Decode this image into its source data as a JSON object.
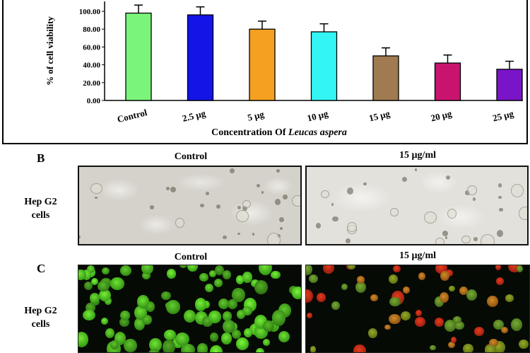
{
  "chart_data": {
    "type": "bar",
    "title": "",
    "xlabel_prefix": "Concentration Of ",
    "xlabel_species": "Leucas aspera",
    "ylabel": "% of cell viability",
    "ylim": [
      0,
      100
    ],
    "yticks": [
      "0.00",
      "20.00",
      "40.00",
      "60.00",
      "80.00",
      "100.00"
    ],
    "categories": [
      "Control",
      "2.5 μg",
      "5 μg",
      "10 μg",
      "15 μg",
      "20 μg",
      "25 μg"
    ],
    "values": [
      98,
      96,
      80,
      77,
      50,
      42,
      35
    ],
    "errors": [
      9,
      9,
      9,
      9,
      9,
      9,
      9
    ],
    "bar_colors": [
      "#7af57a",
      "#1414e6",
      "#f5a020",
      "#33f5f5",
      "#a07a50",
      "#c8146e",
      "#7a14c8"
    ]
  },
  "panel_b": {
    "letter": "B",
    "col_control": "Control",
    "col_treated": "15 µg/ml",
    "row_label_line1": "Hep G2",
    "row_label_line2": "cells"
  },
  "panel_c": {
    "letter": "C",
    "col_control": "Control",
    "col_treated": "15 µg/ml",
    "row_label_line1": "Hep G2",
    "row_label_line2": "cells"
  }
}
